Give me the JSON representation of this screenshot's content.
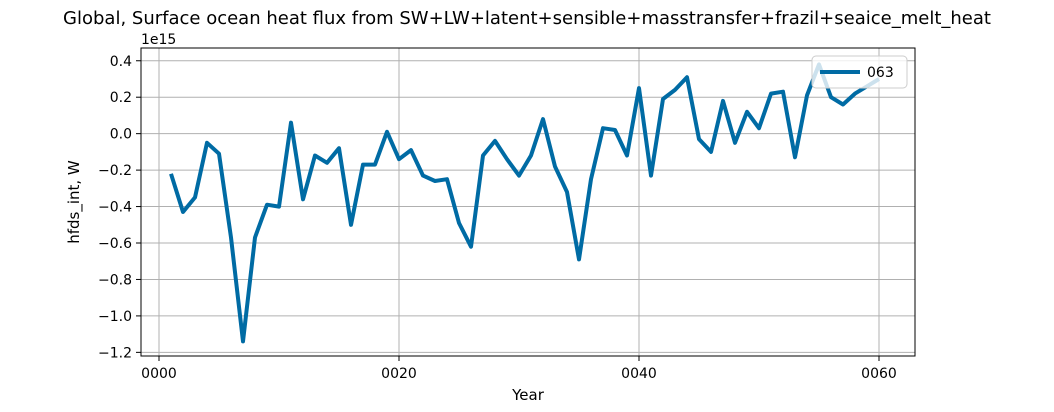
{
  "chart_data": {
    "type": "line",
    "title": "Global, Surface ocean heat flux from SW+LW+latent+sensible+masstransfer+frazil+seaice_melt_heat",
    "xlabel": "Year",
    "ylabel": "hfds_int, W",
    "y_offset_label": "1e15",
    "xlim": [
      -1.5,
      63.0
    ],
    "ylim": [
      -1.22,
      0.47
    ],
    "x_ticks": [
      0,
      20,
      40,
      60
    ],
    "x_tick_labels": [
      "0000",
      "0020",
      "0040",
      "0060"
    ],
    "y_ticks": [
      -1.2,
      -1.0,
      -0.8,
      -0.6,
      -0.4,
      -0.2,
      0.0,
      0.2,
      0.4
    ],
    "y_tick_labels": [
      "−1.2",
      "−1.0",
      "−0.8",
      "−0.6",
      "−0.4",
      "−0.2",
      "0.0",
      "0.2",
      "0.4"
    ],
    "grid": true,
    "legend_position": "top-right",
    "series": [
      {
        "name": "063",
        "color": "#006ba4",
        "x": [
          1,
          2,
          3,
          4,
          5,
          6,
          7,
          8,
          9,
          10,
          11,
          12,
          13,
          14,
          15,
          16,
          17,
          18,
          19,
          20,
          21,
          22,
          23,
          24,
          25,
          26,
          27,
          28,
          29,
          30,
          31,
          32,
          33,
          34,
          35,
          36,
          37,
          38,
          39,
          40,
          41,
          42,
          43,
          44,
          45,
          46,
          47,
          48,
          49,
          50,
          51,
          52,
          53,
          54,
          55,
          56,
          57,
          58,
          59,
          60
        ],
        "y": [
          -0.22,
          -0.43,
          -0.35,
          -0.05,
          -0.11,
          -0.57,
          -1.14,
          -0.57,
          -0.39,
          -0.4,
          0.06,
          -0.36,
          -0.12,
          -0.16,
          -0.08,
          -0.5,
          -0.17,
          -0.17,
          0.01,
          -0.14,
          -0.09,
          -0.23,
          -0.26,
          -0.25,
          -0.49,
          -0.62,
          -0.12,
          -0.04,
          -0.14,
          -0.23,
          -0.12,
          0.08,
          -0.18,
          -0.32,
          -0.69,
          -0.25,
          0.03,
          0.02,
          -0.12,
          0.25,
          -0.23,
          0.19,
          0.24,
          0.31,
          -0.03,
          -0.1,
          0.18,
          -0.05,
          0.12,
          0.03,
          0.22,
          0.23,
          -0.13,
          0.21,
          0.38,
          0.2,
          0.16,
          0.22,
          0.26,
          0.3
        ]
      }
    ]
  }
}
